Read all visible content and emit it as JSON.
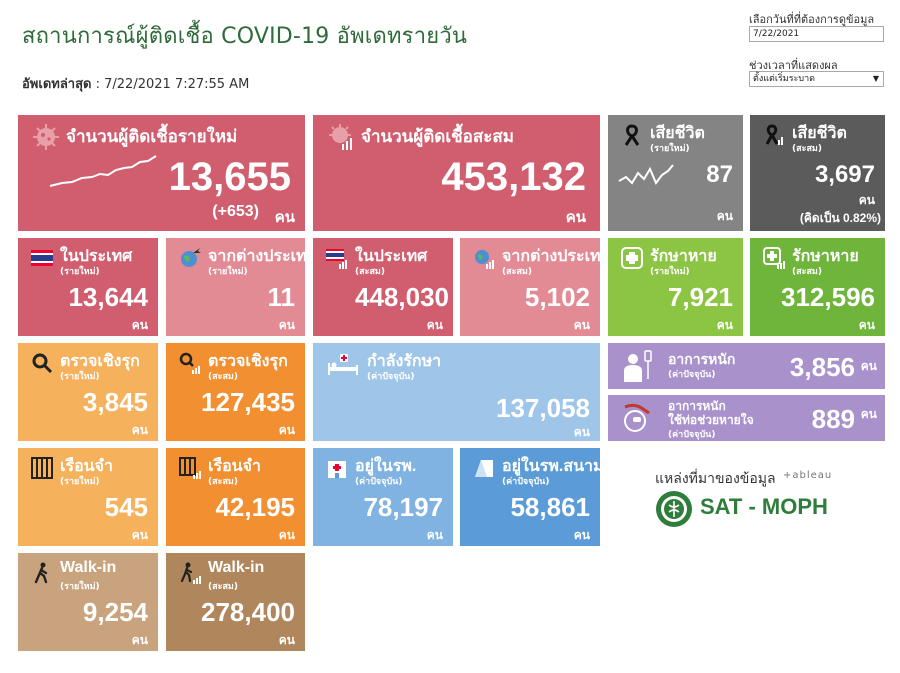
{
  "header": {
    "title": "สถานการณ์ผู้ติดเชื้อ COVID-19 อัพเดทรายวัน",
    "updated_label": "อัพเดทล่าสุด",
    "updated_value": ": 7/22/2021 7:27:55 AM"
  },
  "controls": {
    "date_label": "เลือกวันที่ที่ต้องการดูข้อมูล",
    "date_value": "7/22/2021",
    "period_label": "ช่วงเวลาที่แสดงผล",
    "period_value": "ตั้งแต่เริ่มระบาด"
  },
  "unit": "คน",
  "tiles": {
    "new_cases": {
      "label": "จำนวนผู้ติดเชื้อรายใหม่",
      "value": "13,655",
      "delta": "(+653)"
    },
    "cumulative": {
      "label": "จำนวนผู้ติดเชื้อสะสม",
      "value": "453,132"
    },
    "deaths_new": {
      "label": "เสียชีวิต",
      "sub": "(รายใหม่)",
      "value": "87"
    },
    "deaths_cum": {
      "label": "เสียชีวิต",
      "sub": "(สะสม)",
      "value": "3,697",
      "pct": "(คิดเป็น 0.82%)"
    },
    "domestic_new": {
      "label": "ในประเทศ",
      "sub": "(รายใหม่)",
      "value": "13,644"
    },
    "abroad_new": {
      "label": "จากต่างประเทศ",
      "sub": "(รายใหม่)",
      "value": "11"
    },
    "domestic_cum": {
      "label": "ในประเทศ",
      "sub": "(สะสม)",
      "value": "448,030"
    },
    "abroad_cum": {
      "label": "จากต่างประเทศ",
      "sub": "(สะสม)",
      "value": "5,102"
    },
    "recovered_new": {
      "label": "รักษาหาย",
      "sub": "(รายใหม่)",
      "value": "7,921"
    },
    "recovered_cum": {
      "label": "รักษาหาย",
      "sub": "(สะสม)",
      "value": "312,596"
    },
    "proactive_new": {
      "label": "ตรวจเชิงรุก",
      "sub": "(รายใหม่)",
      "value": "3,845"
    },
    "proactive_cum": {
      "label": "ตรวจเชิงรุก",
      "sub": "(สะสม)",
      "value": "127,435"
    },
    "treating": {
      "label": "กำลังรักษา",
      "sub": "(ค่าปัจจุบัน)",
      "value": "137,058"
    },
    "severe": {
      "label": "อาการหนัก",
      "sub": "(ค่าปัจจุบัน)",
      "value": "3,856"
    },
    "ventilator": {
      "label": "อาการหนัก",
      "label2": "ใช้ท่อช่วยหายใจ",
      "sub": "(ค่าปัจจุบัน)",
      "value": "889"
    },
    "prison_new": {
      "label": "เรือนจำ",
      "sub": "(รายใหม่)",
      "value": "545"
    },
    "prison_cum": {
      "label": "เรือนจำ",
      "sub": "(สะสม)",
      "value": "42,195"
    },
    "hospital": {
      "label": "อยู่ในรพ.",
      "sub": "(ค่าปัจจุบัน)",
      "value": "78,197"
    },
    "field_hospital": {
      "label": "อยู่ในรพ.สนาม",
      "sub": "(ค่าปัจจุบัน)",
      "value": "58,861"
    },
    "walkin_new": {
      "label": "Walk-in",
      "sub": "(รายใหม่)",
      "value": "9,254"
    },
    "walkin_cum": {
      "label": "Walk-in",
      "sub": "(สะสม)",
      "value": "278,400"
    }
  },
  "source": {
    "label": "แหล่งที่มาของข้อมูล",
    "tableau": "+ableau",
    "org": "SAT - MOPH"
  },
  "colors": {
    "title_green": "#2f6b3a",
    "red": "#d15e6f",
    "pink": "#e28b94",
    "gray": "#848484",
    "dark_gray": "#5b5b5b",
    "green": "#8cc444",
    "orange": "#f28f31",
    "light_orange": "#f6b15c",
    "blue": "#5b9bd8",
    "light_blue": "#9fc6e9",
    "purple": "#a991cc",
    "tan": "#c8a37e",
    "brown": "#b0865d"
  }
}
